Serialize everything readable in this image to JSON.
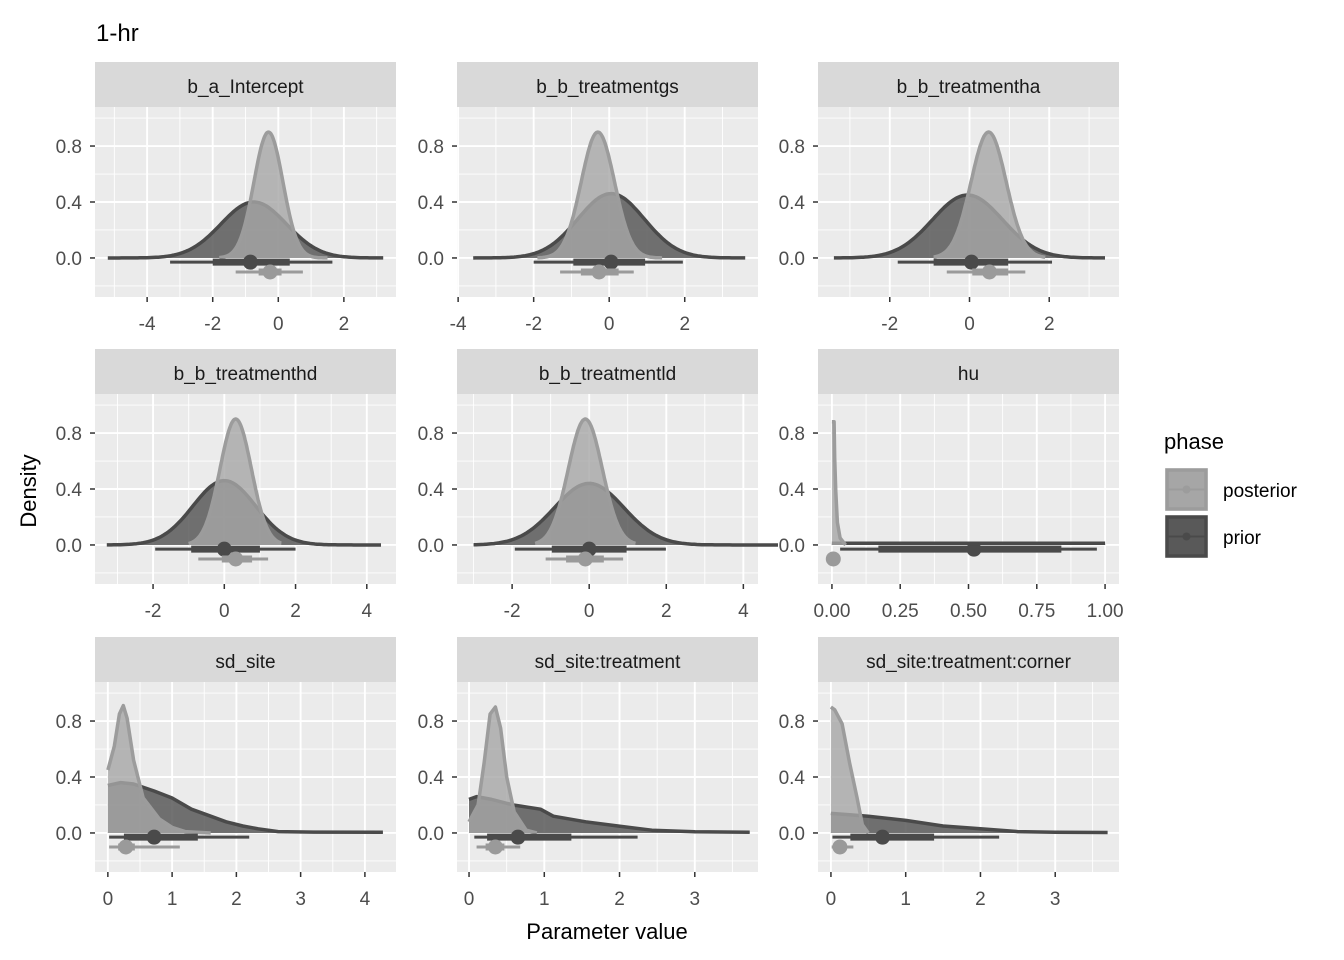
{
  "chart_data": {
    "type": "area",
    "title": "1-hr",
    "xlabel": "Parameter value",
    "ylabel": "Density",
    "ylim": [
      -0.279,
      1.079
    ],
    "yticks": [
      0.0,
      0.4,
      0.8
    ],
    "ytick_labels": [
      "0.0",
      "0.4",
      "0.8"
    ],
    "grid": true,
    "legend": {
      "title": "phase",
      "placement": "right",
      "entries": [
        {
          "name": "posterior",
          "fill": "#a6a6a6",
          "line": "#9c9c9c"
        },
        {
          "name": "prior",
          "fill": "#595959",
          "line": "#4a4a4a"
        }
      ]
    },
    "colors": {
      "panel_bg": "#ebebeb",
      "strip_bg": "#d9d9d9",
      "grid": "#ffffff",
      "axis_text": "#4d4d4d"
    },
    "panels": [
      {
        "name": "b_a_Intercept",
        "xlim": [
          -5.59,
          3.59
        ],
        "xticks": [
          -4,
          -2,
          0,
          2
        ],
        "xtick_labels": [
          "-4",
          "-2",
          "0",
          "2"
        ],
        "prior": {
          "shape": "normal",
          "mean": -0.75,
          "sd": 1.0,
          "peak": 0.4,
          "from": -5.2,
          "to": 3.2,
          "median": -0.85,
          "i66": [
            -2.0,
            0.35
          ],
          "i95": [
            -3.3,
            1.65
          ]
        },
        "posterior": {
          "shape": "normal",
          "mean": -0.3,
          "sd": 0.44,
          "peak": 0.9,
          "from": -1.8,
          "to": 1.5,
          "median": -0.25,
          "i66": [
            -0.6,
            0.1
          ],
          "i95": [
            -1.3,
            0.75
          ]
        }
      },
      {
        "name": "b_b_treatmentgs",
        "xlim": [
          -4.03,
          3.94
        ],
        "xticks": [
          -4,
          -2,
          0,
          2
        ],
        "xtick_labels": [
          "-4",
          "-2",
          "0",
          "2"
        ],
        "prior": {
          "shape": "normal",
          "mean": 0.05,
          "sd": 0.88,
          "peak": 0.46,
          "from": -3.6,
          "to": 3.6,
          "median": 0.05,
          "i66": [
            -0.95,
            0.95
          ],
          "i95": [
            -2.0,
            1.95
          ]
        },
        "posterior": {
          "shape": "normal",
          "mean": -0.3,
          "sd": 0.44,
          "peak": 0.9,
          "from": -1.9,
          "to": 1.4,
          "median": -0.27,
          "i66": [
            -0.75,
            0.25
          ],
          "i95": [
            -1.3,
            0.65
          ]
        }
      },
      {
        "name": "b_b_treatmentha",
        "xlim": [
          -3.8,
          3.75
        ],
        "xticks": [
          -2,
          0,
          2
        ],
        "xtick_labels": [
          "-2",
          "0",
          "2"
        ],
        "prior": {
          "shape": "normal",
          "mean": -0.05,
          "sd": 0.88,
          "peak": 0.45,
          "from": -3.4,
          "to": 3.4,
          "median": 0.05,
          "i66": [
            -0.9,
            0.97
          ],
          "i95": [
            -1.8,
            2.07
          ]
        },
        "posterior": {
          "shape": "normal",
          "mean": 0.48,
          "sd": 0.44,
          "peak": 0.9,
          "from": -0.9,
          "to": 1.9,
          "median": 0.5,
          "i66": [
            0.07,
            0.97
          ],
          "i95": [
            -0.57,
            1.4
          ]
        }
      },
      {
        "name": "b_b_treatmenthd",
        "xlim": [
          -3.63,
          4.82
        ],
        "xticks": [
          -2,
          0,
          2,
          4
        ],
        "xtick_labels": [
          "-2",
          "0",
          "2",
          "4"
        ],
        "prior": {
          "shape": "normal",
          "mean": 0.0,
          "sd": 0.88,
          "peak": 0.46,
          "from": -3.3,
          "to": 4.4,
          "median": 0.0,
          "i66": [
            -0.93,
            1.0
          ],
          "i95": [
            -1.94,
            2.0
          ]
        },
        "posterior": {
          "shape": "normal",
          "mean": 0.32,
          "sd": 0.44,
          "peak": 0.9,
          "from": -1.0,
          "to": 1.6,
          "median": 0.32,
          "i66": [
            -0.07,
            0.78
          ],
          "i95": [
            -0.73,
            1.23
          ]
        }
      },
      {
        "name": "b_b_treatmentld",
        "xlim": [
          -3.43,
          4.38
        ],
        "xticks": [
          -2,
          0,
          2,
          4
        ],
        "xtick_labels": [
          "-2",
          "0",
          "2",
          "4"
        ],
        "prior": {
          "shape": "normal",
          "mean": 0.0,
          "sd": 0.9,
          "peak": 0.44,
          "from": -3.0,
          "to": 4.9,
          "median": 0.0,
          "i66": [
            -0.97,
            0.97
          ],
          "i95": [
            -1.93,
            1.99
          ]
        },
        "posterior": {
          "shape": "normal",
          "mean": -0.1,
          "sd": 0.44,
          "peak": 0.9,
          "from": -1.4,
          "to": 1.2,
          "median": -0.1,
          "i66": [
            -0.6,
            0.38
          ],
          "i95": [
            -1.13,
            0.88
          ]
        }
      },
      {
        "name": "hu",
        "xlim": [
          -0.051,
          1.051
        ],
        "xticks": [
          0,
          0.25,
          0.5,
          0.75,
          1.0
        ],
        "xtick_labels": [
          "0.00",
          "0.25",
          "0.50",
          "0.75",
          "1.00"
        ],
        "prior": {
          "shape": "points",
          "pts": [
            [
              0.0,
              0.012
            ],
            [
              1.0,
              0.012
            ]
          ],
          "median": 0.52,
          "i66": [
            0.17,
            0.84
          ],
          "i95": [
            0.03,
            0.97
          ]
        },
        "posterior": {
          "shape": "points",
          "pts": [
            [
              0.0,
              0.88
            ],
            [
              0.008,
              0.88
            ],
            [
              0.01,
              0.62
            ],
            [
              0.014,
              0.38
            ],
            [
              0.02,
              0.16
            ],
            [
              0.03,
              0.05
            ],
            [
              0.05,
              0.0
            ]
          ],
          "median": 0.005,
          "i66": [
            0.002,
            0.008
          ],
          "i95": [
            0.0,
            0.012
          ]
        }
      },
      {
        "name": "sd_site",
        "xlim": [
          -0.2,
          4.484
        ],
        "xticks": [
          0,
          1,
          2,
          3,
          4
        ],
        "xtick_labels": [
          "0",
          "1",
          "2",
          "3",
          "4"
        ],
        "prior": {
          "shape": "points",
          "pts": [
            [
              0,
              0.34
            ],
            [
              0.2,
              0.36
            ],
            [
              0.4,
              0.35
            ],
            [
              0.72,
              0.3
            ],
            [
              1.0,
              0.25
            ],
            [
              1.3,
              0.17
            ],
            [
              1.6,
              0.12
            ],
            [
              1.84,
              0.08
            ],
            [
              2.1,
              0.05
            ],
            [
              2.34,
              0.03
            ],
            [
              2.65,
              0.01
            ],
            [
              3.2,
              0.006
            ],
            [
              4.28,
              0.005
            ]
          ],
          "median": 0.72,
          "i66": [
            0.25,
            1.4
          ],
          "i95": [
            0.02,
            2.2
          ]
        },
        "posterior": {
          "shape": "points",
          "pts": [
            [
              0,
              0.45
            ],
            [
              0.1,
              0.62
            ],
            [
              0.18,
              0.85
            ],
            [
              0.24,
              0.91
            ],
            [
              0.3,
              0.82
            ],
            [
              0.4,
              0.52
            ],
            [
              0.55,
              0.25
            ],
            [
              0.8,
              0.1
            ],
            [
              1.0,
              0.04
            ],
            [
              1.2,
              0.01
            ],
            [
              1.6,
              0.0
            ]
          ],
          "median": 0.28,
          "i66": [
            0.16,
            0.42
          ],
          "i95": [
            0.02,
            1.12
          ]
        }
      },
      {
        "name": "sd_site:treatment",
        "xlim": [
          -0.16,
          3.84
        ],
        "xticks": [
          0,
          1,
          2,
          3
        ],
        "xtick_labels": [
          "0",
          "1",
          "2",
          "3"
        ],
        "prior": {
          "shape": "points",
          "pts": [
            [
              0,
              0.24
            ],
            [
              0.1,
              0.26
            ],
            [
              0.3,
              0.24
            ],
            [
              0.59,
              0.2
            ],
            [
              0.95,
              0.17
            ],
            [
              1.12,
              0.12
            ],
            [
              1.55,
              0.08
            ],
            [
              1.98,
              0.05
            ],
            [
              2.43,
              0.02
            ],
            [
              3.0,
              0.008
            ],
            [
              3.73,
              0.005
            ]
          ],
          "median": 0.65,
          "i66": [
            0.24,
            1.36
          ],
          "i95": [
            0.07,
            2.24
          ]
        },
        "posterior": {
          "shape": "points",
          "pts": [
            [
              0,
              0.08
            ],
            [
              0.12,
              0.2
            ],
            [
              0.2,
              0.5
            ],
            [
              0.28,
              0.85
            ],
            [
              0.35,
              0.9
            ],
            [
              0.42,
              0.75
            ],
            [
              0.5,
              0.4
            ],
            [
              0.6,
              0.15
            ],
            [
              0.76,
              0.02
            ],
            [
              0.9,
              0.0
            ]
          ],
          "median": 0.35,
          "i66": [
            0.22,
            0.47
          ],
          "i95": [
            0.1,
            0.68
          ]
        }
      },
      {
        "name": "sd_site:treatment:corner",
        "xlim": [
          -0.173,
          3.853
        ],
        "xticks": [
          0,
          1,
          2,
          3
        ],
        "xtick_labels": [
          "0",
          "1",
          "2",
          "3"
        ],
        "prior": {
          "shape": "points",
          "pts": [
            [
              0,
              0.14
            ],
            [
              0.25,
              0.13
            ],
            [
              0.5,
              0.12
            ],
            [
              1.0,
              0.09
            ],
            [
              1.5,
              0.05
            ],
            [
              2.0,
              0.03
            ],
            [
              2.5,
              0.01
            ],
            [
              3.0,
              0.005
            ],
            [
              3.7,
              0.003
            ]
          ],
          "median": 0.69,
          "i66": [
            0.26,
            1.38
          ],
          "i95": [
            0.02,
            2.25
          ]
        },
        "posterior": {
          "shape": "points",
          "pts": [
            [
              0,
              0.9
            ],
            [
              0.05,
              0.88
            ],
            [
              0.15,
              0.78
            ],
            [
              0.25,
              0.5
            ],
            [
              0.35,
              0.25
            ],
            [
              0.42,
              0.06
            ],
            [
              0.5,
              0.0
            ]
          ],
          "median": 0.12,
          "i66": [
            0.06,
            0.2
          ],
          "i95": [
            0.01,
            0.3
          ]
        }
      }
    ]
  }
}
